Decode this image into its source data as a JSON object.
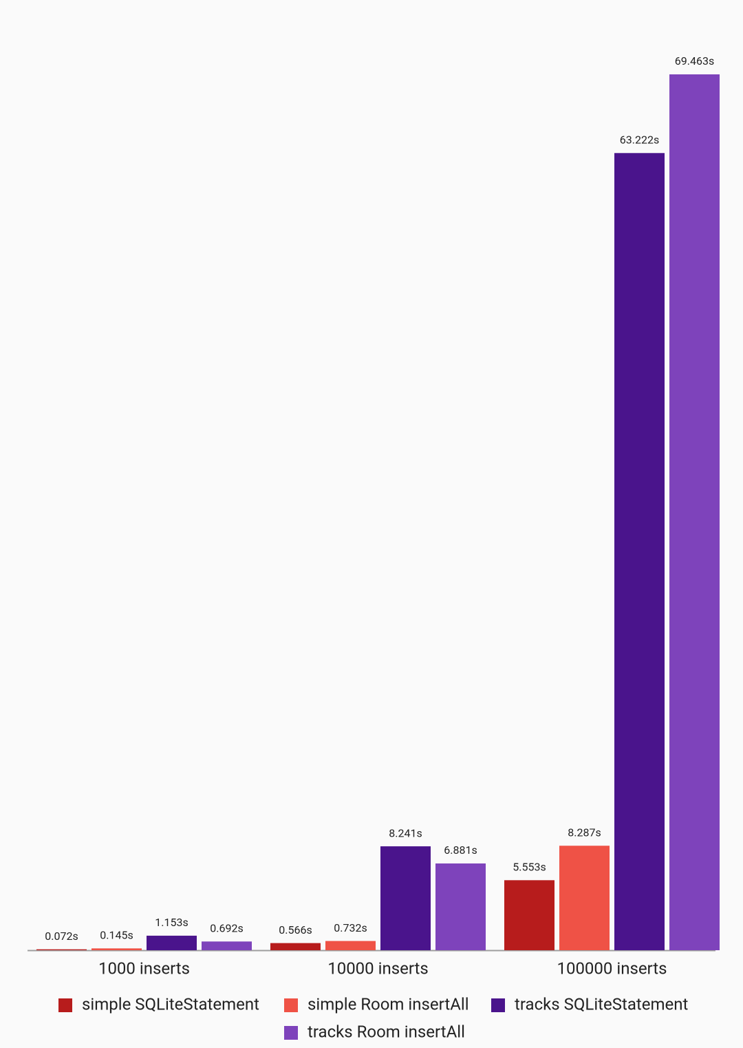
{
  "chart_data": {
    "type": "bar",
    "categories": [
      "1000 inserts",
      "10000 inserts",
      "100000 inserts"
    ],
    "series": [
      {
        "name": "simple SQLiteStatement",
        "color": "#b71c1c",
        "values": [
          0.072,
          0.566,
          5.553
        ],
        "value_labels": [
          "0.072s",
          "0.566s",
          "5.553s"
        ]
      },
      {
        "name": "simple Room insertAll",
        "color": "#ef5246",
        "values": [
          0.145,
          0.732,
          8.287
        ],
        "value_labels": [
          "0.145s",
          "0.732s",
          "8.287s"
        ]
      },
      {
        "name": "tracks SQLiteStatement",
        "color": "#4a148c",
        "values": [
          1.153,
          8.241,
          63.222
        ],
        "value_labels": [
          "1.153s",
          "8.241s",
          "63.222s"
        ]
      },
      {
        "name": "tracks Room insertAll",
        "color": "#7e43bb",
        "values": [
          0.692,
          6.881,
          69.463
        ],
        "value_labels": [
          "0.692s",
          "6.881s",
          "69.463s"
        ]
      }
    ]
  }
}
